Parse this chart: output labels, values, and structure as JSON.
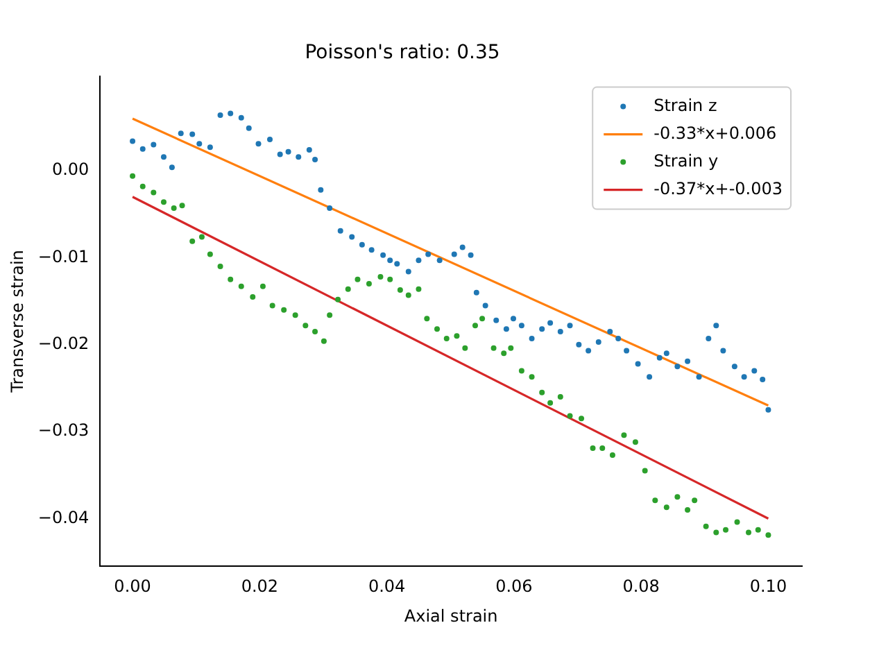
{
  "chart_data": {
    "type": "scatter",
    "title": "Poisson's ratio: 0.35",
    "xlabel": "Axial strain",
    "ylabel": "Transverse strain",
    "xlim": [
      -0.0051,
      0.1053
    ],
    "ylim": [
      -0.0455,
      0.0109
    ],
    "xticks": [
      {
        "value": 0,
        "label": "0.00"
      },
      {
        "value": 0.02,
        "label": "0.02"
      },
      {
        "value": 0.04,
        "label": "0.04"
      },
      {
        "value": 0.06,
        "label": "0.06"
      },
      {
        "value": 0.08,
        "label": "0.08"
      },
      {
        "value": 0.1,
        "label": "0.10"
      }
    ],
    "yticks": [
      {
        "value": 0,
        "label": "0.00"
      },
      {
        "value": -0.01,
        "label": "−0.01"
      },
      {
        "value": -0.02,
        "label": "−0.02"
      },
      {
        "value": -0.03,
        "label": "−0.03"
      },
      {
        "value": -0.04,
        "label": "−0.04"
      }
    ],
    "legend": "top right",
    "grid": false,
    "series": [
      {
        "name": "Strain z",
        "type": "scatter",
        "marker": "circle",
        "color": "#1f77b4",
        "x": [
          0,
          0.0016,
          0.0033,
          0.0049,
          0.0062,
          0.0076,
          0.0094,
          0.0105,
          0.0122,
          0.0138,
          0.0154,
          0.0171,
          0.0183,
          0.0198,
          0.0216,
          0.0232,
          0.0245,
          0.0261,
          0.0278,
          0.0287,
          0.0296,
          0.031,
          0.0327,
          0.0345,
          0.0361,
          0.0376,
          0.0394,
          0.0405,
          0.0416,
          0.0434,
          0.045,
          0.0465,
          0.0483,
          0.0506,
          0.0519,
          0.0532,
          0.0541,
          0.0555,
          0.0572,
          0.0588,
          0.0599,
          0.0612,
          0.0628,
          0.0644,
          0.0657,
          0.0673,
          0.0688,
          0.0702,
          0.0717,
          0.0733,
          0.0751,
          0.0764,
          0.0777,
          0.0795,
          0.0813,
          0.0829,
          0.084,
          0.0857,
          0.0873,
          0.0891,
          0.0906,
          0.0918,
          0.0929,
          0.0947,
          0.0962,
          0.0978,
          0.0991,
          0.1
        ],
        "values": [
          0.0034,
          0.0025,
          0.003,
          0.0016,
          0.0004,
          0.0043,
          0.0042,
          0.0031,
          0.0027,
          0.0064,
          0.0066,
          0.0061,
          0.0049,
          0.0031,
          0.0036,
          0.0019,
          0.0022,
          0.0016,
          0.0024,
          0.0013,
          -0.0022,
          -0.0043,
          -0.0069,
          -0.0076,
          -0.0085,
          -0.0091,
          -0.0097,
          -0.0103,
          -0.0107,
          -0.0116,
          -0.0103,
          -0.0096,
          -0.0103,
          -0.0096,
          -0.0088,
          -0.0097,
          -0.014,
          -0.0155,
          -0.0172,
          -0.0182,
          -0.017,
          -0.0178,
          -0.0193,
          -0.0182,
          -0.0175,
          -0.0185,
          -0.0178,
          -0.02,
          -0.0207,
          -0.0197,
          -0.0185,
          -0.0193,
          -0.0207,
          -0.0222,
          -0.0237,
          -0.0215,
          -0.021,
          -0.0225,
          -0.0219,
          -0.0237,
          -0.0193,
          -0.0178,
          -0.0207,
          -0.0225,
          -0.0237,
          -0.023,
          -0.024,
          -0.0275
        ]
      },
      {
        "name": "-0.33*x+0.006",
        "type": "line",
        "marker": "none",
        "line_style": "solid",
        "color": "#ff7f0e",
        "x": [
          0,
          0.1
        ],
        "values": [
          0.006,
          -0.027
        ]
      },
      {
        "name": "Strain y",
        "type": "scatter",
        "marker": "circle",
        "color": "#2ca02c",
        "x": [
          0,
          0.0016,
          0.0033,
          0.0049,
          0.0065,
          0.0078,
          0.0094,
          0.0109,
          0.0122,
          0.0138,
          0.0154,
          0.0171,
          0.0189,
          0.0205,
          0.022,
          0.0238,
          0.0256,
          0.0272,
          0.0287,
          0.0301,
          0.031,
          0.0323,
          0.0339,
          0.0354,
          0.0372,
          0.039,
          0.0405,
          0.0421,
          0.0434,
          0.045,
          0.0463,
          0.0479,
          0.0494,
          0.051,
          0.0523,
          0.0539,
          0.055,
          0.0568,
          0.0584,
          0.0595,
          0.0612,
          0.0628,
          0.0644,
          0.0657,
          0.0673,
          0.0688,
          0.0706,
          0.0724,
          0.0739,
          0.0755,
          0.0773,
          0.0791,
          0.0806,
          0.0822,
          0.084,
          0.0857,
          0.0873,
          0.0884,
          0.0902,
          0.0918,
          0.0933,
          0.0951,
          0.0969,
          0.0984,
          0.1
        ],
        "values": [
          -0.0006,
          -0.0018,
          -0.0025,
          -0.0036,
          -0.0043,
          -0.004,
          -0.0081,
          -0.0076,
          -0.0096,
          -0.011,
          -0.0125,
          -0.0133,
          -0.0145,
          -0.0133,
          -0.0155,
          -0.016,
          -0.0166,
          -0.0178,
          -0.0185,
          -0.0196,
          -0.0166,
          -0.0148,
          -0.0136,
          -0.0125,
          -0.013,
          -0.0122,
          -0.0125,
          -0.0137,
          -0.0143,
          -0.0136,
          -0.017,
          -0.0182,
          -0.0193,
          -0.019,
          -0.0204,
          -0.0178,
          -0.017,
          -0.0204,
          -0.021,
          -0.0204,
          -0.023,
          -0.0237,
          -0.0255,
          -0.0267,
          -0.026,
          -0.0282,
          -0.0285,
          -0.0319,
          -0.0319,
          -0.0327,
          -0.0304,
          -0.0312,
          -0.0345,
          -0.0379,
          -0.0387,
          -0.0375,
          -0.039,
          -0.0379,
          -0.0409,
          -0.0416,
          -0.0413,
          -0.0404,
          -0.0416,
          -0.0413,
          -0.0419
        ]
      },
      {
        "name": "-0.37*x+-0.003",
        "type": "line",
        "marker": "none",
        "line_style": "solid",
        "color": "#d62728",
        "x": [
          0,
          0.1
        ],
        "values": [
          -0.003,
          -0.04
        ]
      }
    ]
  }
}
